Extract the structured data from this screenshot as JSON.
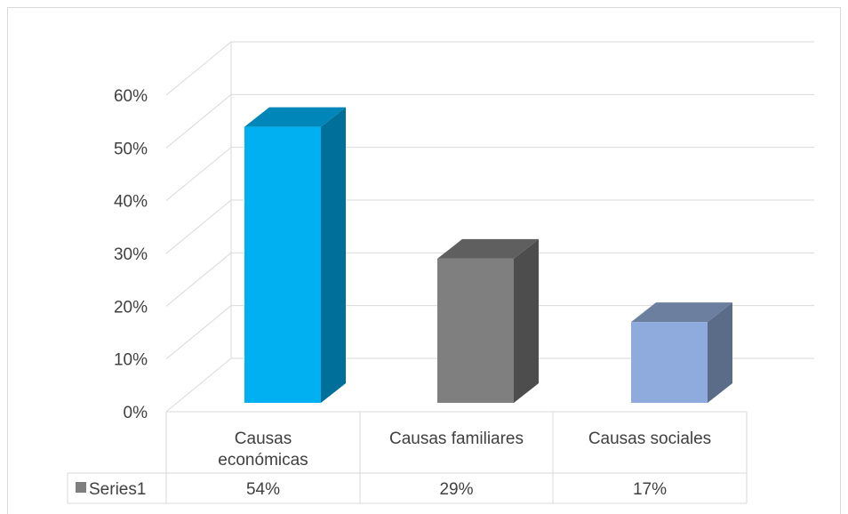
{
  "chart_data": {
    "type": "bar",
    "categories": [
      "Causas económicas",
      "Causas familiares",
      "Causas sociales"
    ],
    "category_lines": [
      [
        "Causas",
        "económicas"
      ],
      [
        "Causas familiares"
      ],
      [
        "Causas sociales"
      ]
    ],
    "series": [
      {
        "name": "Series1",
        "values": [
          0.54,
          0.29,
          0.17
        ],
        "value_labels": [
          "54%",
          "29%",
          "17%"
        ]
      }
    ],
    "y_ticks": [
      "0%",
      "10%",
      "20%",
      "30%",
      "40%",
      "50%",
      "60%"
    ],
    "ylim": [
      0,
      0.6
    ],
    "grid": true,
    "three_d": true,
    "data_table": true,
    "colors": {
      "bar_front": [
        "#00b0f0",
        "#7f7f7f",
        "#8faadc"
      ],
      "bar_side": [
        "#006f99",
        "#4d4d4d",
        "#5b6c89"
      ],
      "bar_top": [
        "#0086b8",
        "#5f5f5f",
        "#6c7f9e"
      ],
      "legend_key": "#7f7f7f",
      "grid": "#d9d9d9",
      "text": "#404040"
    }
  }
}
